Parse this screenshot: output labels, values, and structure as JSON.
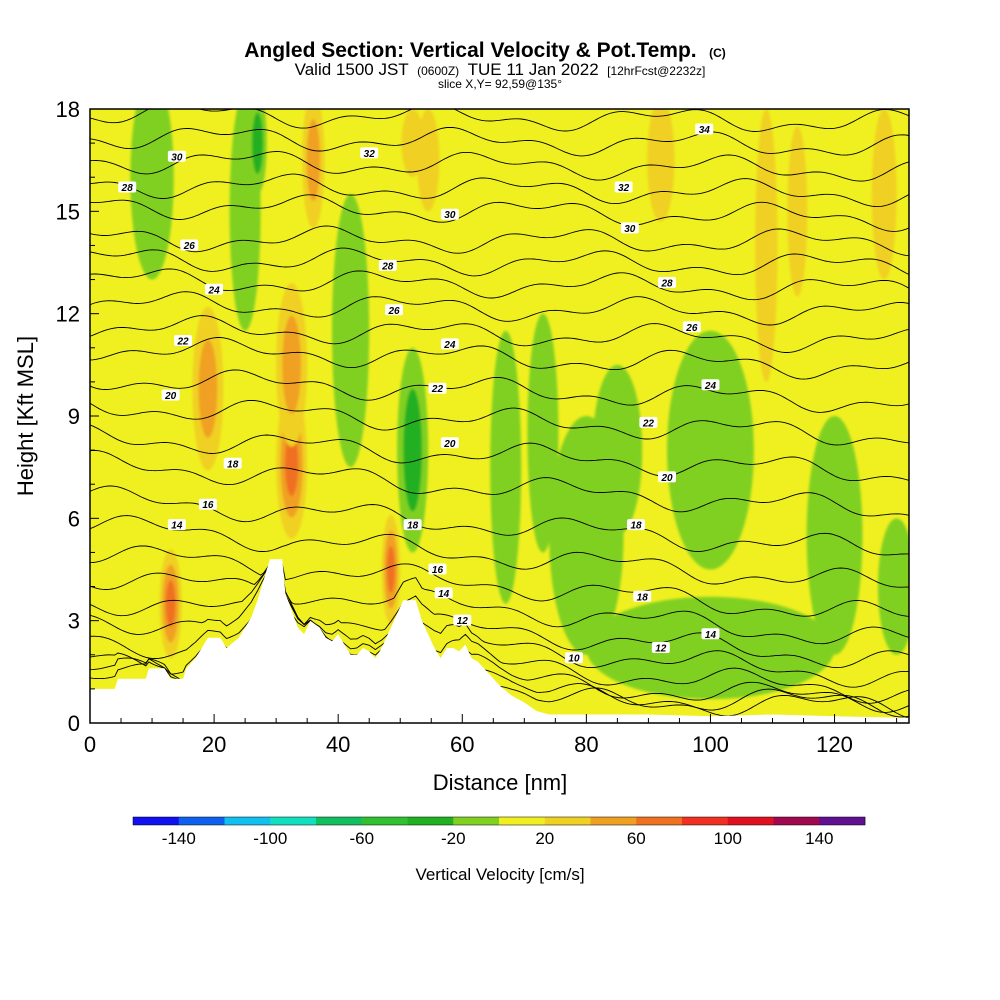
{
  "header": {
    "title": "Angled Section: Vertical Velocity & Pot.Temp.",
    "title_units": "(C)",
    "valid_prefix": "Valid 1500 JST",
    "valid_utc": "(0600Z)",
    "valid_date": "TUE 11 Jan 2022",
    "forecast": "[12hrFcst@2232z]",
    "slice": "slice X,Y= 92,59@135°"
  },
  "chart_data": {
    "type": "heatmap",
    "xlabel": "Distance [nm]",
    "ylabel": "Height [Kft MSL]",
    "xlim": [
      0,
      132
    ],
    "ylim": [
      0,
      18
    ],
    "x_ticks": [
      "0",
      "20",
      "40",
      "60",
      "80",
      "100",
      "120"
    ],
    "y_ticks": [
      "0",
      "3",
      "6",
      "9",
      "12",
      "15",
      "18"
    ],
    "colorbar": {
      "title": "Vertical Velocity [cm/s]",
      "tick_labels": [
        "-140",
        "-100",
        "-60",
        "-20",
        "20",
        "60",
        "100",
        "140"
      ],
      "bins": [
        -160,
        -140,
        -120,
        -100,
        -80,
        -60,
        -40,
        -20,
        0,
        20,
        40,
        60,
        80,
        100,
        120,
        140,
        160
      ],
      "colors": [
        "#1010f0",
        "#1060f0",
        "#10c0f0",
        "#10e0c0",
        "#10c060",
        "#30c030",
        "#20b020",
        "#80d020",
        "#f0f020",
        "#f0d020",
        "#f0a020",
        "#f07020",
        "#f03020",
        "#e01020",
        "#a00850",
        "#601090"
      ]
    },
    "background_velocity_cms": 5,
    "terrain": [
      {
        "x": 0,
        "h": 1.0
      },
      {
        "x": 4,
        "h": 1.0
      },
      {
        "x": 4.5,
        "h": 1.3
      },
      {
        "x": 9,
        "h": 1.3
      },
      {
        "x": 9.5,
        "h": 1.6
      },
      {
        "x": 12,
        "h": 1.6
      },
      {
        "x": 13,
        "h": 1.3
      },
      {
        "x": 15,
        "h": 1.3
      },
      {
        "x": 15.5,
        "h": 1.6
      },
      {
        "x": 17,
        "h": 1.9
      },
      {
        "x": 18,
        "h": 2.2
      },
      {
        "x": 19,
        "h": 2.5
      },
      {
        "x": 21,
        "h": 2.5
      },
      {
        "x": 22,
        "h": 2.2
      },
      {
        "x": 24,
        "h": 2.5
      },
      {
        "x": 25,
        "h": 2.8
      },
      {
        "x": 26,
        "h": 3.1
      },
      {
        "x": 27,
        "h": 3.6
      },
      {
        "x": 28,
        "h": 4.2
      },
      {
        "x": 29,
        "h": 4.8
      },
      {
        "x": 31,
        "h": 4.8
      },
      {
        "x": 31.5,
        "h": 3.8
      },
      {
        "x": 32.5,
        "h": 3.3
      },
      {
        "x": 33.5,
        "h": 2.8
      },
      {
        "x": 34.5,
        "h": 2.6
      },
      {
        "x": 35.5,
        "h": 3.0
      },
      {
        "x": 37,
        "h": 2.8
      },
      {
        "x": 38,
        "h": 2.5
      },
      {
        "x": 39,
        "h": 2.4
      },
      {
        "x": 40,
        "h": 2.6
      },
      {
        "x": 41,
        "h": 2.3
      },
      {
        "x": 42,
        "h": 2.0
      },
      {
        "x": 43,
        "h": 2.0
      },
      {
        "x": 44,
        "h": 2.2
      },
      {
        "x": 45,
        "h": 2.1
      },
      {
        "x": 46,
        "h": 1.9
      },
      {
        "x": 47,
        "h": 2.2
      },
      {
        "x": 48,
        "h": 2.6
      },
      {
        "x": 49.5,
        "h": 3.2
      },
      {
        "x": 50.5,
        "h": 3.6
      },
      {
        "x": 52.5,
        "h": 3.6
      },
      {
        "x": 53.5,
        "h": 3.0
      },
      {
        "x": 54.5,
        "h": 2.6
      },
      {
        "x": 55.5,
        "h": 2.2
      },
      {
        "x": 56.5,
        "h": 1.9
      },
      {
        "x": 57.5,
        "h": 2.2
      },
      {
        "x": 58.5,
        "h": 2.2
      },
      {
        "x": 59.5,
        "h": 2.1
      },
      {
        "x": 60.5,
        "h": 2.3
      },
      {
        "x": 61.5,
        "h": 1.9
      },
      {
        "x": 62.5,
        "h": 1.8
      },
      {
        "x": 64,
        "h": 1.5
      },
      {
        "x": 66,
        "h": 1.1
      },
      {
        "x": 68,
        "h": 0.8
      },
      {
        "x": 70,
        "h": 0.6
      },
      {
        "x": 72,
        "h": 0.35
      },
      {
        "x": 74,
        "h": 0.25
      },
      {
        "x": 90,
        "h": 0.25
      },
      {
        "x": 100,
        "h": 0.2
      },
      {
        "x": 110,
        "h": 0.25
      },
      {
        "x": 120,
        "h": 0.2
      },
      {
        "x": 132,
        "h": 0.15
      }
    ],
    "velocity_features": [
      {
        "sign": "up",
        "x": 13,
        "y": 3.5,
        "w": 1.8,
        "h": 1.6,
        "v": 80
      },
      {
        "sign": "up",
        "x": 19,
        "y": 9.8,
        "w": 2.5,
        "h": 2.4,
        "v": 60
      },
      {
        "sign": "up",
        "x": 32.5,
        "y": 7.6,
        "w": 2.5,
        "h": 2.2,
        "v": 80
      },
      {
        "sign": "up",
        "x": 32.5,
        "y": 10.5,
        "w": 2.5,
        "h": 2.4,
        "v": 60
      },
      {
        "sign": "up",
        "x": 48.5,
        "y": 4.5,
        "w": 1.5,
        "h": 1.6,
        "v": 80
      },
      {
        "sign": "up",
        "x": 36,
        "y": 16.5,
        "w": 1.8,
        "h": 2.0,
        "v": 60
      },
      {
        "sign": "up",
        "x": 52,
        "y": 17.0,
        "w": 1.8,
        "h": 1.0,
        "v": 40
      },
      {
        "sign": "up",
        "x": 54.5,
        "y": 16.5,
        "w": 1.8,
        "h": 1.5,
        "v": 40
      },
      {
        "sign": "up",
        "x": 92,
        "y": 16.5,
        "w": 2.2,
        "h": 1.8,
        "v": 40
      },
      {
        "sign": "up",
        "x": 109,
        "y": 14.0,
        "w": 1.8,
        "h": 4.0,
        "v": 40
      },
      {
        "sign": "up",
        "x": 114,
        "y": 15.0,
        "w": 1.6,
        "h": 2.5,
        "v": 40
      },
      {
        "sign": "up",
        "x": 128,
        "y": 15.5,
        "w": 2.0,
        "h": 2.5,
        "v": 40
      },
      {
        "sign": "down",
        "x": 10,
        "y": 16.0,
        "w": 3.5,
        "h": 3.0,
        "v": -20
      },
      {
        "sign": "down",
        "x": 25,
        "y": 15.0,
        "w": 2.5,
        "h": 3.5,
        "v": -20
      },
      {
        "sign": "down",
        "x": 27,
        "y": 17.0,
        "w": 1.5,
        "h": 1.5,
        "v": -40
      },
      {
        "sign": "down",
        "x": 42,
        "y": 11.5,
        "w": 3.0,
        "h": 4.0,
        "v": -20
      },
      {
        "sign": "down",
        "x": 52,
        "y": 6.8,
        "w": 1.5,
        "h": 1.8,
        "v": -70
      },
      {
        "sign": "down",
        "x": 52,
        "y": 8.0,
        "w": 2.5,
        "h": 3.0,
        "v": -30
      },
      {
        "sign": "down",
        "x": 67,
        "y": 7.5,
        "w": 2.5,
        "h": 4.0,
        "v": -20
      },
      {
        "sign": "down",
        "x": 73,
        "y": 8.5,
        "w": 2.5,
        "h": 3.5,
        "v": -20
      },
      {
        "sign": "down",
        "x": 80,
        "y": 5.5,
        "w": 6.0,
        "h": 3.5,
        "v": -20
      },
      {
        "sign": "down",
        "x": 85,
        "y": 8.0,
        "w": 4.0,
        "h": 2.5,
        "v": -20
      },
      {
        "sign": "down",
        "x": 100,
        "y": 8.0,
        "w": 7.0,
        "h": 3.5,
        "v": -20
      },
      {
        "sign": "down",
        "x": 120,
        "y": 5.5,
        "w": 4.5,
        "h": 3.5,
        "v": -20
      },
      {
        "sign": "down",
        "x": 100,
        "y": 2.2,
        "w": 20.0,
        "h": 1.5,
        "v": -20
      },
      {
        "sign": "down",
        "x": 130,
        "y": 4.0,
        "w": 3.0,
        "h": 2.0,
        "v": -20
      }
    ],
    "theta_contours": [
      {
        "value": 10,
        "label": "10",
        "yl": 0.8,
        "yr": 0.1
      },
      {
        "value": 11,
        "label": "",
        "yl": 1.3,
        "yr": 0.3
      },
      {
        "value": 12,
        "label": "12",
        "yl": 1.8,
        "yr": 0.6
      },
      {
        "value": 13,
        "label": "",
        "yl": 2.4,
        "yr": 0.9
      },
      {
        "value": 14,
        "label": "14",
        "yl": 3.1,
        "yr": 1.3
      },
      {
        "value": 15,
        "label": "",
        "yl": 3.6,
        "yr": 1.8
      },
      {
        "value": 16,
        "label": "16",
        "yl": 4.3,
        "yr": 2.4
      },
      {
        "value": 17,
        "label": "",
        "yl": 5.0,
        "yr": 3.1
      },
      {
        "value": 18,
        "label": "18",
        "yl": 5.8,
        "yr": 4.0
      },
      {
        "value": 19,
        "label": "",
        "yl": 6.6,
        "yr": 5.0
      },
      {
        "value": 20,
        "label": "20",
        "yl": 7.6,
        "yr": 6.2
      },
      {
        "value": 21,
        "label": "",
        "yl": 8.4,
        "yr": 7.3
      },
      {
        "value": 22,
        "label": "22",
        "yl": 9.3,
        "yr": 8.4
      },
      {
        "value": 23,
        "label": "",
        "yl": 10.1,
        "yr": 9.4
      },
      {
        "value": 24,
        "label": "24",
        "yl": 11.0,
        "yr": 10.4
      },
      {
        "value": 25,
        "label": "",
        "yl": 11.6,
        "yr": 11.2
      },
      {
        "value": 26,
        "label": "26",
        "yl": 12.3,
        "yr": 12.0
      },
      {
        "value": 27,
        "label": "",
        "yl": 13.0,
        "yr": 12.7
      },
      {
        "value": 28,
        "label": "28",
        "yl": 13.6,
        "yr": 13.4
      },
      {
        "value": 29,
        "label": "",
        "yl": 14.2,
        "yr": 14.1
      },
      {
        "value": 30,
        "label": "30",
        "yl": 15.2,
        "yr": 14.8
      },
      {
        "value": 31,
        "label": "",
        "yl": 15.8,
        "yr": 15.5
      },
      {
        "value": 32,
        "label": "32",
        "yl": 16.5,
        "yr": 16.2
      },
      {
        "value": 33,
        "label": "",
        "yl": 17.2,
        "yr": 16.9
      },
      {
        "value": 34,
        "label": "34",
        "yl": 17.9,
        "yr": 17.6
      }
    ],
    "contour_labels": [
      {
        "text": "34",
        "x": 99,
        "y": 17.4
      },
      {
        "text": "32",
        "x": 45,
        "y": 16.7
      },
      {
        "text": "32",
        "x": 86,
        "y": 15.7
      },
      {
        "text": "30",
        "x": 14,
        "y": 16.6
      },
      {
        "text": "30",
        "x": 58,
        "y": 14.9
      },
      {
        "text": "30",
        "x": 87,
        "y": 14.5
      },
      {
        "text": "28",
        "x": 6,
        "y": 15.7
      },
      {
        "text": "28",
        "x": 48,
        "y": 13.4
      },
      {
        "text": "28",
        "x": 93,
        "y": 12.9
      },
      {
        "text": "26",
        "x": 16,
        "y": 14.0
      },
      {
        "text": "26",
        "x": 49,
        "y": 12.1
      },
      {
        "text": "26",
        "x": 97,
        "y": 11.6
      },
      {
        "text": "24",
        "x": 20,
        "y": 12.7
      },
      {
        "text": "24",
        "x": 58,
        "y": 11.1
      },
      {
        "text": "24",
        "x": 100,
        "y": 9.9
      },
      {
        "text": "22",
        "x": 15,
        "y": 11.2
      },
      {
        "text": "22",
        "x": 56,
        "y": 9.8
      },
      {
        "text": "22",
        "x": 90,
        "y": 8.8
      },
      {
        "text": "20",
        "x": 13,
        "y": 9.6
      },
      {
        "text": "20",
        "x": 58,
        "y": 8.2
      },
      {
        "text": "20",
        "x": 93,
        "y": 7.2
      },
      {
        "text": "18",
        "x": 23,
        "y": 7.6
      },
      {
        "text": "18",
        "x": 52,
        "y": 5.8
      },
      {
        "text": "18",
        "x": 88,
        "y": 5.8
      },
      {
        "text": "18",
        "x": 89,
        "y": 3.7
      },
      {
        "text": "16",
        "x": 19,
        "y": 6.4
      },
      {
        "text": "16",
        "x": 56,
        "y": 4.5
      },
      {
        "text": "14",
        "x": 14,
        "y": 5.8
      },
      {
        "text": "14",
        "x": 57,
        "y": 3.8
      },
      {
        "text": "14",
        "x": 100,
        "y": 2.6
      },
      {
        "text": "12",
        "x": 60,
        "y": 3.0
      },
      {
        "text": "12",
        "x": 92,
        "y": 2.2
      },
      {
        "text": "10",
        "x": 78,
        "y": 1.9
      }
    ]
  }
}
